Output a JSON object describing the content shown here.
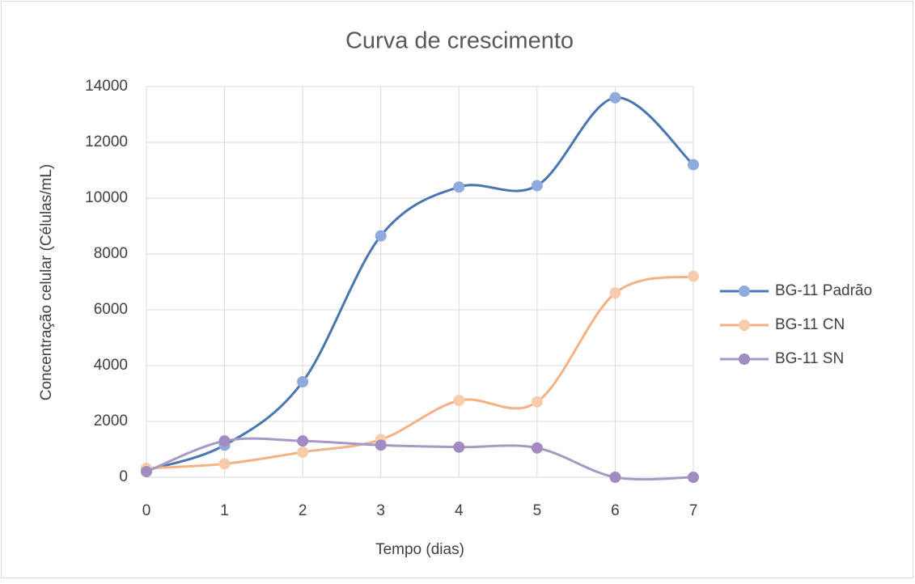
{
  "chart_data": {
    "type": "line",
    "title": "Curva de crescimento",
    "x_label": "Tempo (dias)",
    "y_label": "Concentração celular (Células/mL)",
    "x": [
      0,
      1,
      2,
      3,
      4,
      5,
      6,
      7
    ],
    "xlim": [
      0,
      7
    ],
    "xticks": [
      0,
      1,
      2,
      3,
      4,
      5,
      6,
      7
    ],
    "ylim": [
      0,
      14000
    ],
    "yticks": [
      0,
      2000,
      4000,
      6000,
      8000,
      10000,
      12000,
      14000
    ],
    "grid": true,
    "smooth": true,
    "legend": "right",
    "series": [
      {
        "name": "BG-11 Padrão",
        "color": "#4a76b0",
        "marker_color": "#8faadc",
        "values": [
          250,
          1150,
          3420,
          8650,
          10400,
          10450,
          13600,
          11200
        ]
      },
      {
        "name": "BG-11 CN",
        "color": "#f4b183",
        "marker_color": "#f8cbad",
        "values": [
          320,
          480,
          900,
          1350,
          2750,
          2700,
          6600,
          7200
        ]
      },
      {
        "name": "BG-11 SN",
        "color": "#a798c6",
        "marker_color": "#a08cc0",
        "values": [
          200,
          1300,
          1300,
          1150,
          1080,
          1050,
          0,
          0
        ]
      }
    ]
  }
}
